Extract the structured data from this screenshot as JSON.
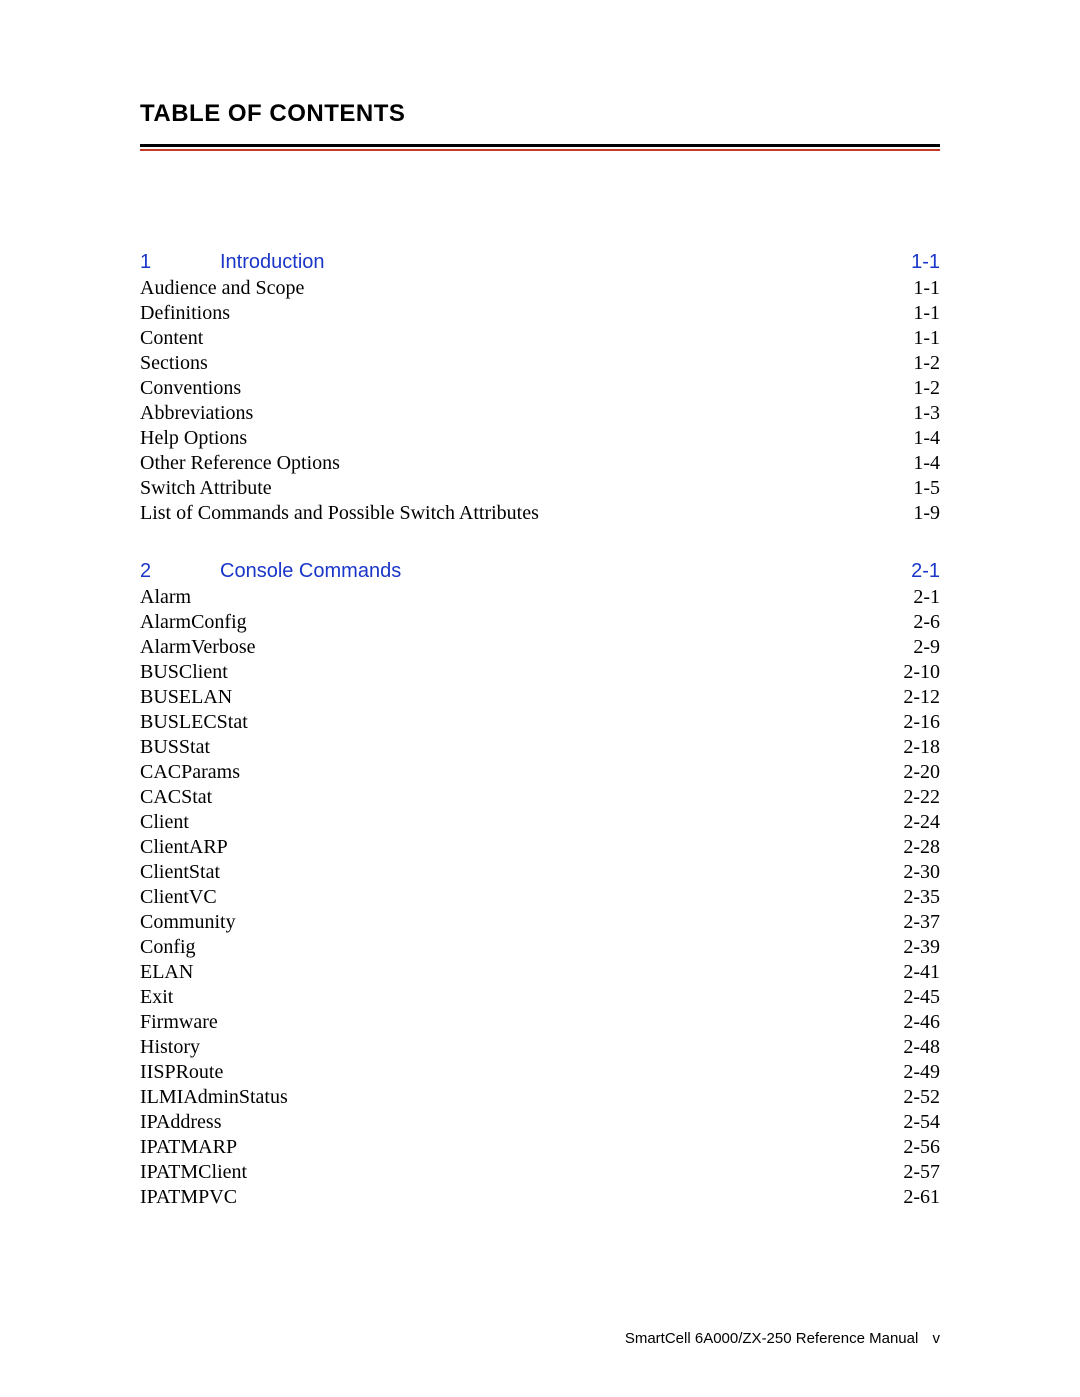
{
  "title": "TABLE OF CONTENTS",
  "colors": {
    "rule_black": "#000000",
    "rule_red": "#c43a24",
    "heading_blue": "#1a36c9",
    "text_black": "#000000",
    "background": "#ffffff"
  },
  "fonts": {
    "heading_family": "Arial, Helvetica, sans-serif",
    "body_family": "Times New Roman, Times, serif",
    "title_size_pt": 18,
    "section_heading_size_pt": 15,
    "entry_size_pt": 15,
    "footer_size_pt": 11
  },
  "sections": [
    {
      "number": "1",
      "title": "Introduction",
      "page": "1-1",
      "entries": [
        {
          "title": "Audience and Scope",
          "page": "1-1"
        },
        {
          "title": "Definitions",
          "page": "1-1"
        },
        {
          "title": "Content",
          "page": "1-1"
        },
        {
          "title": "Sections",
          "page": "1-2"
        },
        {
          "title": "Conventions",
          "page": "1-2"
        },
        {
          "title": "Abbreviations",
          "page": "1-3"
        },
        {
          "title": "Help Options",
          "page": "1-4"
        },
        {
          "title": "Other Reference Options",
          "page": "1-4"
        },
        {
          "title": "Switch Attribute",
          "page": "1-5"
        },
        {
          "title": "List of Commands and Possible Switch Attributes",
          "page": "1-9"
        }
      ]
    },
    {
      "number": "2",
      "title": "Console Commands",
      "page": "2-1",
      "entries": [
        {
          "title": "Alarm",
          "page": "2-1"
        },
        {
          "title": "AlarmConfig",
          "page": "2-6"
        },
        {
          "title": "AlarmVerbose",
          "page": "2-9"
        },
        {
          "title": "BUSClient",
          "page": "2-10"
        },
        {
          "title": "BUSELAN",
          "page": "2-12"
        },
        {
          "title": "BUSLECStat",
          "page": "2-16"
        },
        {
          "title": "BUSStat",
          "page": "2-18"
        },
        {
          "title": "CACParams",
          "page": "2-20"
        },
        {
          "title": "CACStat",
          "page": "2-22"
        },
        {
          "title": "Client",
          "page": "2-24"
        },
        {
          "title": "ClientARP",
          "page": "2-28"
        },
        {
          "title": "ClientStat",
          "page": "2-30"
        },
        {
          "title": "ClientVC",
          "page": "2-35"
        },
        {
          "title": "Community",
          "page": "2-37"
        },
        {
          "title": "Config",
          "page": "2-39"
        },
        {
          "title": "ELAN",
          "page": "2-41"
        },
        {
          "title": "Exit",
          "page": "2-45"
        },
        {
          "title": "Firmware",
          "page": "2-46"
        },
        {
          "title": "History",
          "page": "2-48"
        },
        {
          "title": "IISPRoute",
          "page": "2-49"
        },
        {
          "title": "ILMIAdminStatus",
          "page": "2-52"
        },
        {
          "title": "IPAddress",
          "page": "2-54"
        },
        {
          "title": "IPATMARP",
          "page": "2-56"
        },
        {
          "title": "IPATMClient",
          "page": "2-57"
        },
        {
          "title": "IPATMPVC",
          "page": "2-61"
        }
      ]
    }
  ],
  "footer": {
    "text": "SmartCell 6A000/ZX-250 Reference Manual",
    "page_number": "v"
  }
}
